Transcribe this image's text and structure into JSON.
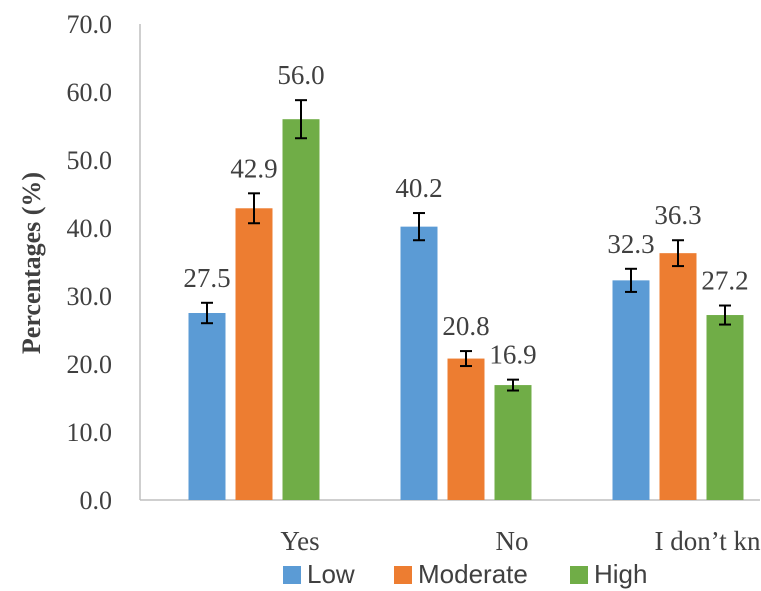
{
  "chart_data": {
    "type": "bar",
    "ylabel": "Percentages (%)",
    "xlabel": "",
    "ylim": [
      0,
      70
    ],
    "yticks": [
      "0.0",
      "10.0",
      "20.0",
      "30.0",
      "40.0",
      "50.0",
      "60.0",
      "70.0"
    ],
    "categories": [
      "Yes",
      "No",
      "I don’t know"
    ],
    "series": [
      {
        "name": "Low",
        "color": "#5B9BD5",
        "values": [
          27.5,
          40.2,
          32.3
        ],
        "labels": [
          "27.5",
          "40.2",
          "32.3"
        ],
        "errors": [
          1.5,
          2.0,
          1.7
        ]
      },
      {
        "name": "Moderate",
        "color": "#ED7D31",
        "values": [
          42.9,
          20.8,
          36.3
        ],
        "labels": [
          "42.9",
          "20.8",
          "36.3"
        ],
        "errors": [
          2.2,
          1.1,
          1.9
        ]
      },
      {
        "name": "High",
        "color": "#70AD47",
        "values": [
          56.0,
          16.9,
          27.2
        ],
        "labels": [
          "56.0",
          "16.9",
          "27.2"
        ],
        "errors": [
          2.8,
          0.8,
          1.4
        ]
      }
    ],
    "grid": false,
    "legend": "bottom",
    "error_bars": true
  }
}
